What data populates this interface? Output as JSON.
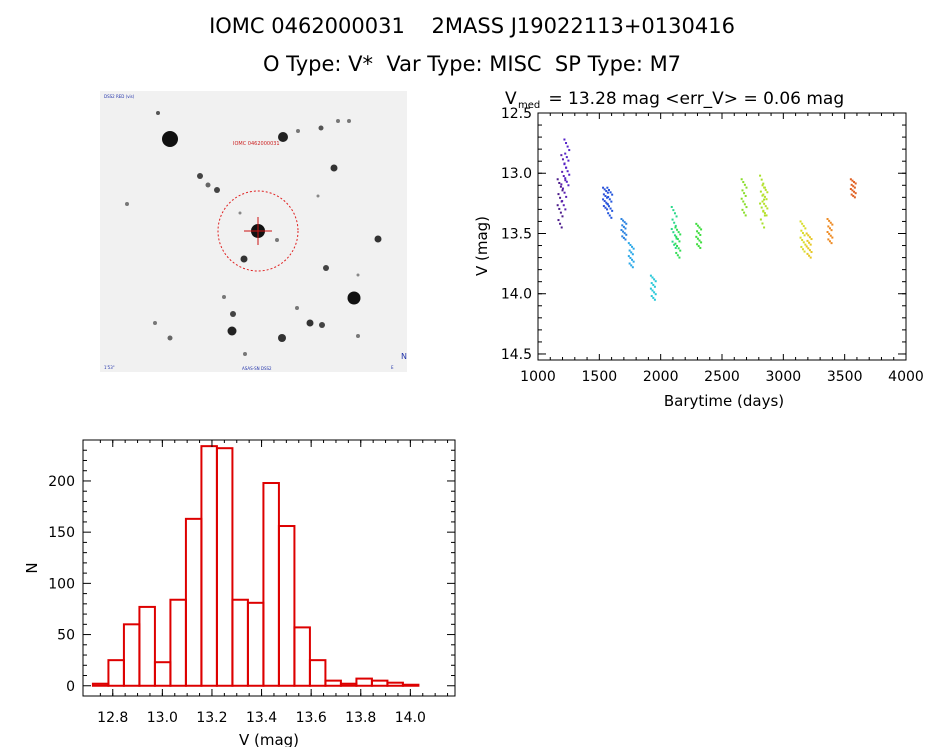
{
  "header": {
    "line1": "IOMC 0462000031    2MASS J19022113+0130416",
    "line2": "O Type: V*  Var Type: MISC  SP Type: M7"
  },
  "finder": {
    "corner_tl": "DSS2 RED (vis)",
    "top_label": "IOMC 0462000031",
    "corner_bl": "1'53\"",
    "bottom_label": "ASAS-SN DSS2",
    "corner_br": "E",
    "compass": "N"
  },
  "chart_data": [
    {
      "type": "scatter",
      "title_main": "V",
      "title_sub": "med",
      "title_rest": " = 13.28 mag <err_V> = 0.06 mag",
      "xlabel": "Barytime (days)",
      "ylabel": "V (mag)",
      "xlim": [
        1000,
        4000
      ],
      "ylim": [
        14.55,
        12.5
      ],
      "x_ticks": [
        1000,
        1500,
        2000,
        2500,
        3000,
        3500,
        4000
      ],
      "y_ticks": [
        "12.5",
        "13.0",
        "13.5",
        "14.0",
        "14.5"
      ],
      "y_tick_values": [
        12.5,
        13.0,
        13.5,
        14.0,
        14.5
      ],
      "clusters": [
        {
          "x": 1180,
          "y_top": 13.05,
          "y_bottom": 13.45,
          "color": "#4b1a8a"
        },
        {
          "x": 1210,
          "y_top": 12.85,
          "y_bottom": 13.3,
          "color": "#5a1fb0"
        },
        {
          "x": 1235,
          "y_top": 12.72,
          "y_bottom": 13.1,
          "color": "#5522c8"
        },
        {
          "x": 1550,
          "y_top": 13.12,
          "y_bottom": 13.3,
          "color": "#2a4fd8"
        },
        {
          "x": 1585,
          "y_top": 13.12,
          "y_bottom": 13.37,
          "color": "#2255dd"
        },
        {
          "x": 1700,
          "y_top": 13.38,
          "y_bottom": 13.55,
          "color": "#2a82e0"
        },
        {
          "x": 1760,
          "y_top": 13.58,
          "y_bottom": 13.78,
          "color": "#2aa8e8"
        },
        {
          "x": 1940,
          "y_top": 13.85,
          "y_bottom": 14.05,
          "color": "#29c8d8"
        },
        {
          "x": 2110,
          "y_top": 13.28,
          "y_bottom": 13.62,
          "color": "#2ad88a"
        },
        {
          "x": 2140,
          "y_top": 13.45,
          "y_bottom": 13.7,
          "color": "#33dd55"
        },
        {
          "x": 2310,
          "y_top": 13.42,
          "y_bottom": 13.62,
          "color": "#3ddc3d"
        },
        {
          "x": 2680,
          "y_top": 13.05,
          "y_bottom": 13.35,
          "color": "#88dd2a"
        },
        {
          "x": 2830,
          "y_top": 13.02,
          "y_bottom": 13.45,
          "color": "#a8e02a"
        },
        {
          "x": 2850,
          "y_top": 13.1,
          "y_bottom": 13.35,
          "color": "#b8e02a"
        },
        {
          "x": 3160,
          "y_top": 13.4,
          "y_bottom": 13.65,
          "color": "#d8dc2a"
        },
        {
          "x": 3210,
          "y_top": 13.5,
          "y_bottom": 13.7,
          "color": "#e6c622"
        },
        {
          "x": 3380,
          "y_top": 13.38,
          "y_bottom": 13.58,
          "color": "#ee8a22"
        },
        {
          "x": 3570,
          "y_top": 13.05,
          "y_bottom": 13.2,
          "color": "#e06022"
        }
      ]
    },
    {
      "type": "bar",
      "xlabel": "V (mag)",
      "ylabel": "N",
      "xlim": [
        12.68,
        14.18
      ],
      "ylim": [
        -10,
        240
      ],
      "x_ticks": [
        "12.8",
        "13.0",
        "13.2",
        "13.4",
        "13.6",
        "13.8",
        "14.0"
      ],
      "x_tick_values": [
        12.8,
        13.0,
        13.2,
        13.4,
        13.6,
        13.8,
        14.0
      ],
      "y_ticks": [
        "0",
        "50",
        "100",
        "150",
        "200"
      ],
      "y_tick_values": [
        0,
        50,
        100,
        150,
        200
      ],
      "bin_start": 12.72,
      "bin_width": 0.0625,
      "values": [
        2,
        25,
        60,
        77,
        23,
        84,
        163,
        234,
        232,
        84,
        81,
        198,
        156,
        57,
        25,
        5,
        2,
        7,
        5,
        3,
        1
      ],
      "bar_color": "#dd0000"
    }
  ]
}
